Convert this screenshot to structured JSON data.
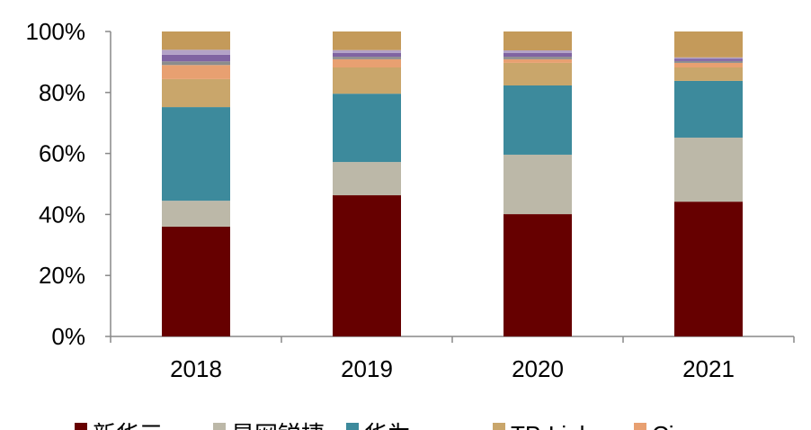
{
  "chart_data": {
    "type": "stacked_bar",
    "categories": [
      "2018",
      "2019",
      "2020",
      "2021"
    ],
    "series": [
      {
        "name": "新华三",
        "color": "#660000",
        "values": [
          36,
          46.3,
          40.1,
          44.2
        ]
      },
      {
        "name": "星网锐捷",
        "color": "#bcb8a8",
        "values": [
          8.5,
          10.9,
          19.5,
          21.0
        ]
      },
      {
        "name": "华为",
        "color": "#3d8a9c",
        "values": [
          30.7,
          22.4,
          22.7,
          18.6
        ]
      },
      {
        "name": "TP-Link",
        "color": "#c9a66b",
        "values": [
          9.2,
          8.6,
          7.4,
          4.4
        ]
      },
      {
        "name": "Cisco",
        "color": "#e8a071",
        "values": [
          4.6,
          2.7,
          1.2,
          1.5
        ]
      },
      {
        "color": "#8c8c8c",
        "values": [
          1.2,
          0.8,
          0.8,
          0.6
        ]
      },
      {
        "color": "#8064a2",
        "values": [
          2.2,
          1.3,
          1.3,
          0.8
        ]
      },
      {
        "color": "#b3a2c7",
        "values": [
          1.6,
          0.9,
          0.8,
          0.4
        ]
      },
      {
        "color": "#c49a5a",
        "values": [
          6.0,
          6.1,
          6.2,
          8.5
        ]
      }
    ],
    "ylim": [
      0,
      100
    ],
    "yticks": [
      {
        "value": 0,
        "label": "0%"
      },
      {
        "value": 20,
        "label": "20%"
      },
      {
        "value": 40,
        "label": "40%"
      },
      {
        "value": 60,
        "label": "60%"
      },
      {
        "value": 80,
        "label": "80%"
      },
      {
        "value": 100,
        "label": "100%"
      }
    ],
    "grid": false
  }
}
